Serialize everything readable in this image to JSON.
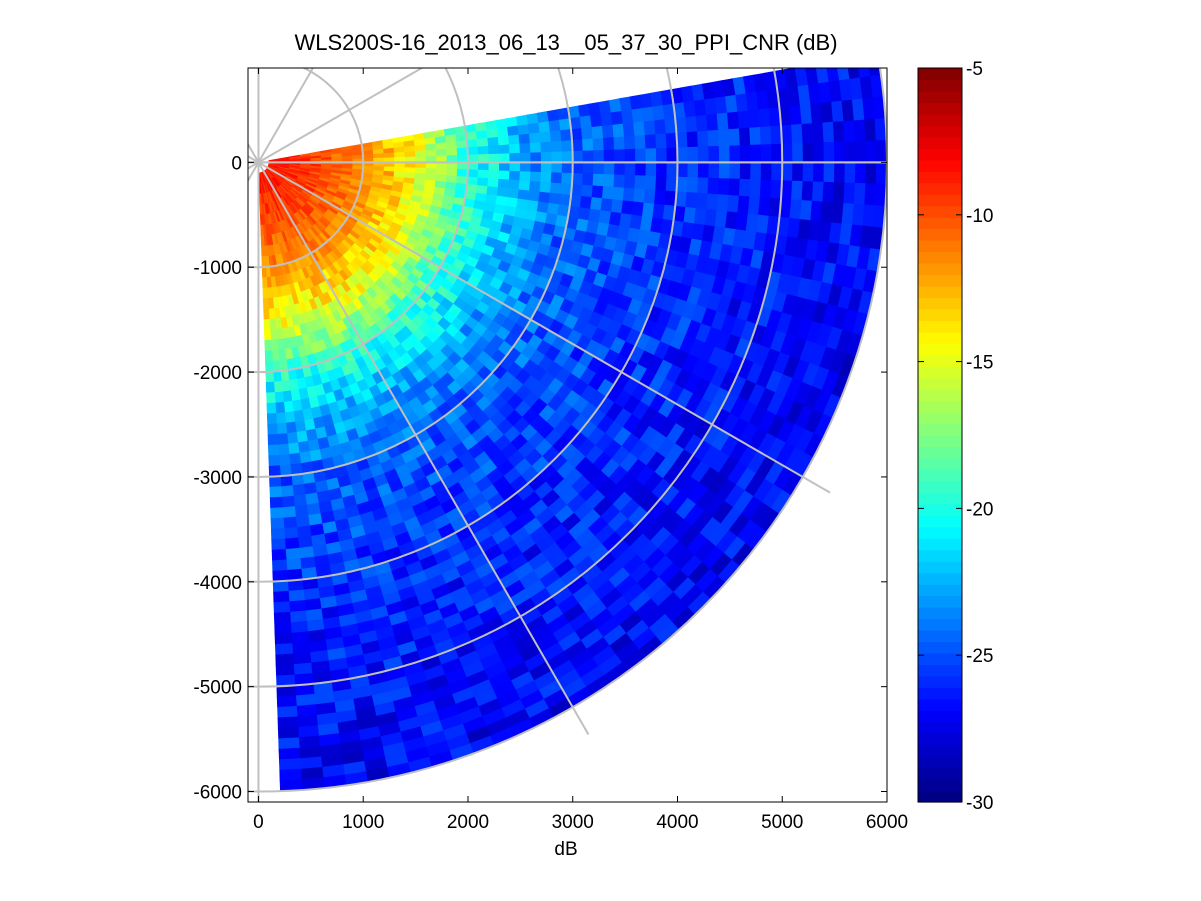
{
  "chart_data": {
    "type": "heatmap",
    "subtype": "polar-ppi-scan",
    "title": "WLS200S-16_2013_06_13__05_37_30_PPI_CNR (dB)",
    "xlabel": "dB",
    "ylabel": "",
    "xlim": [
      -100,
      6000
    ],
    "ylim": [
      -6100,
      900
    ],
    "xticks": [
      0,
      1000,
      2000,
      3000,
      4000,
      5000,
      6000
    ],
    "yticks": [
      0,
      -1000,
      -2000,
      -3000,
      -4000,
      -5000,
      -6000
    ],
    "scan": {
      "azimuth_start_deg": 80,
      "azimuth_end_deg": 178,
      "azimuth_step_deg": 2,
      "range_min": 100,
      "range_max": 6000,
      "range_step": 100
    },
    "polar_grid": {
      "rings": [
        1000,
        2000,
        3000,
        4000,
        5000,
        6000
      ],
      "spokes_deg": [
        0,
        30,
        60,
        90,
        120,
        150,
        180
      ]
    },
    "cnr_profile": {
      "range": [
        100,
        500,
        1000,
        1500,
        2000,
        2500,
        3000,
        4000,
        5000,
        6000
      ],
      "cnr_db": [
        -8.5,
        -9.5,
        -11.5,
        -14.5,
        -19.5,
        -22.5,
        -24.5,
        -25.8,
        -26.5,
        -27
      ]
    },
    "colorbar": {
      "colormap": "jet",
      "clim": [
        -30,
        -5
      ],
      "ticks": [
        -5,
        -10,
        -15,
        -20,
        -25,
        -30
      ]
    },
    "grid_color": "#c0c0c0"
  }
}
